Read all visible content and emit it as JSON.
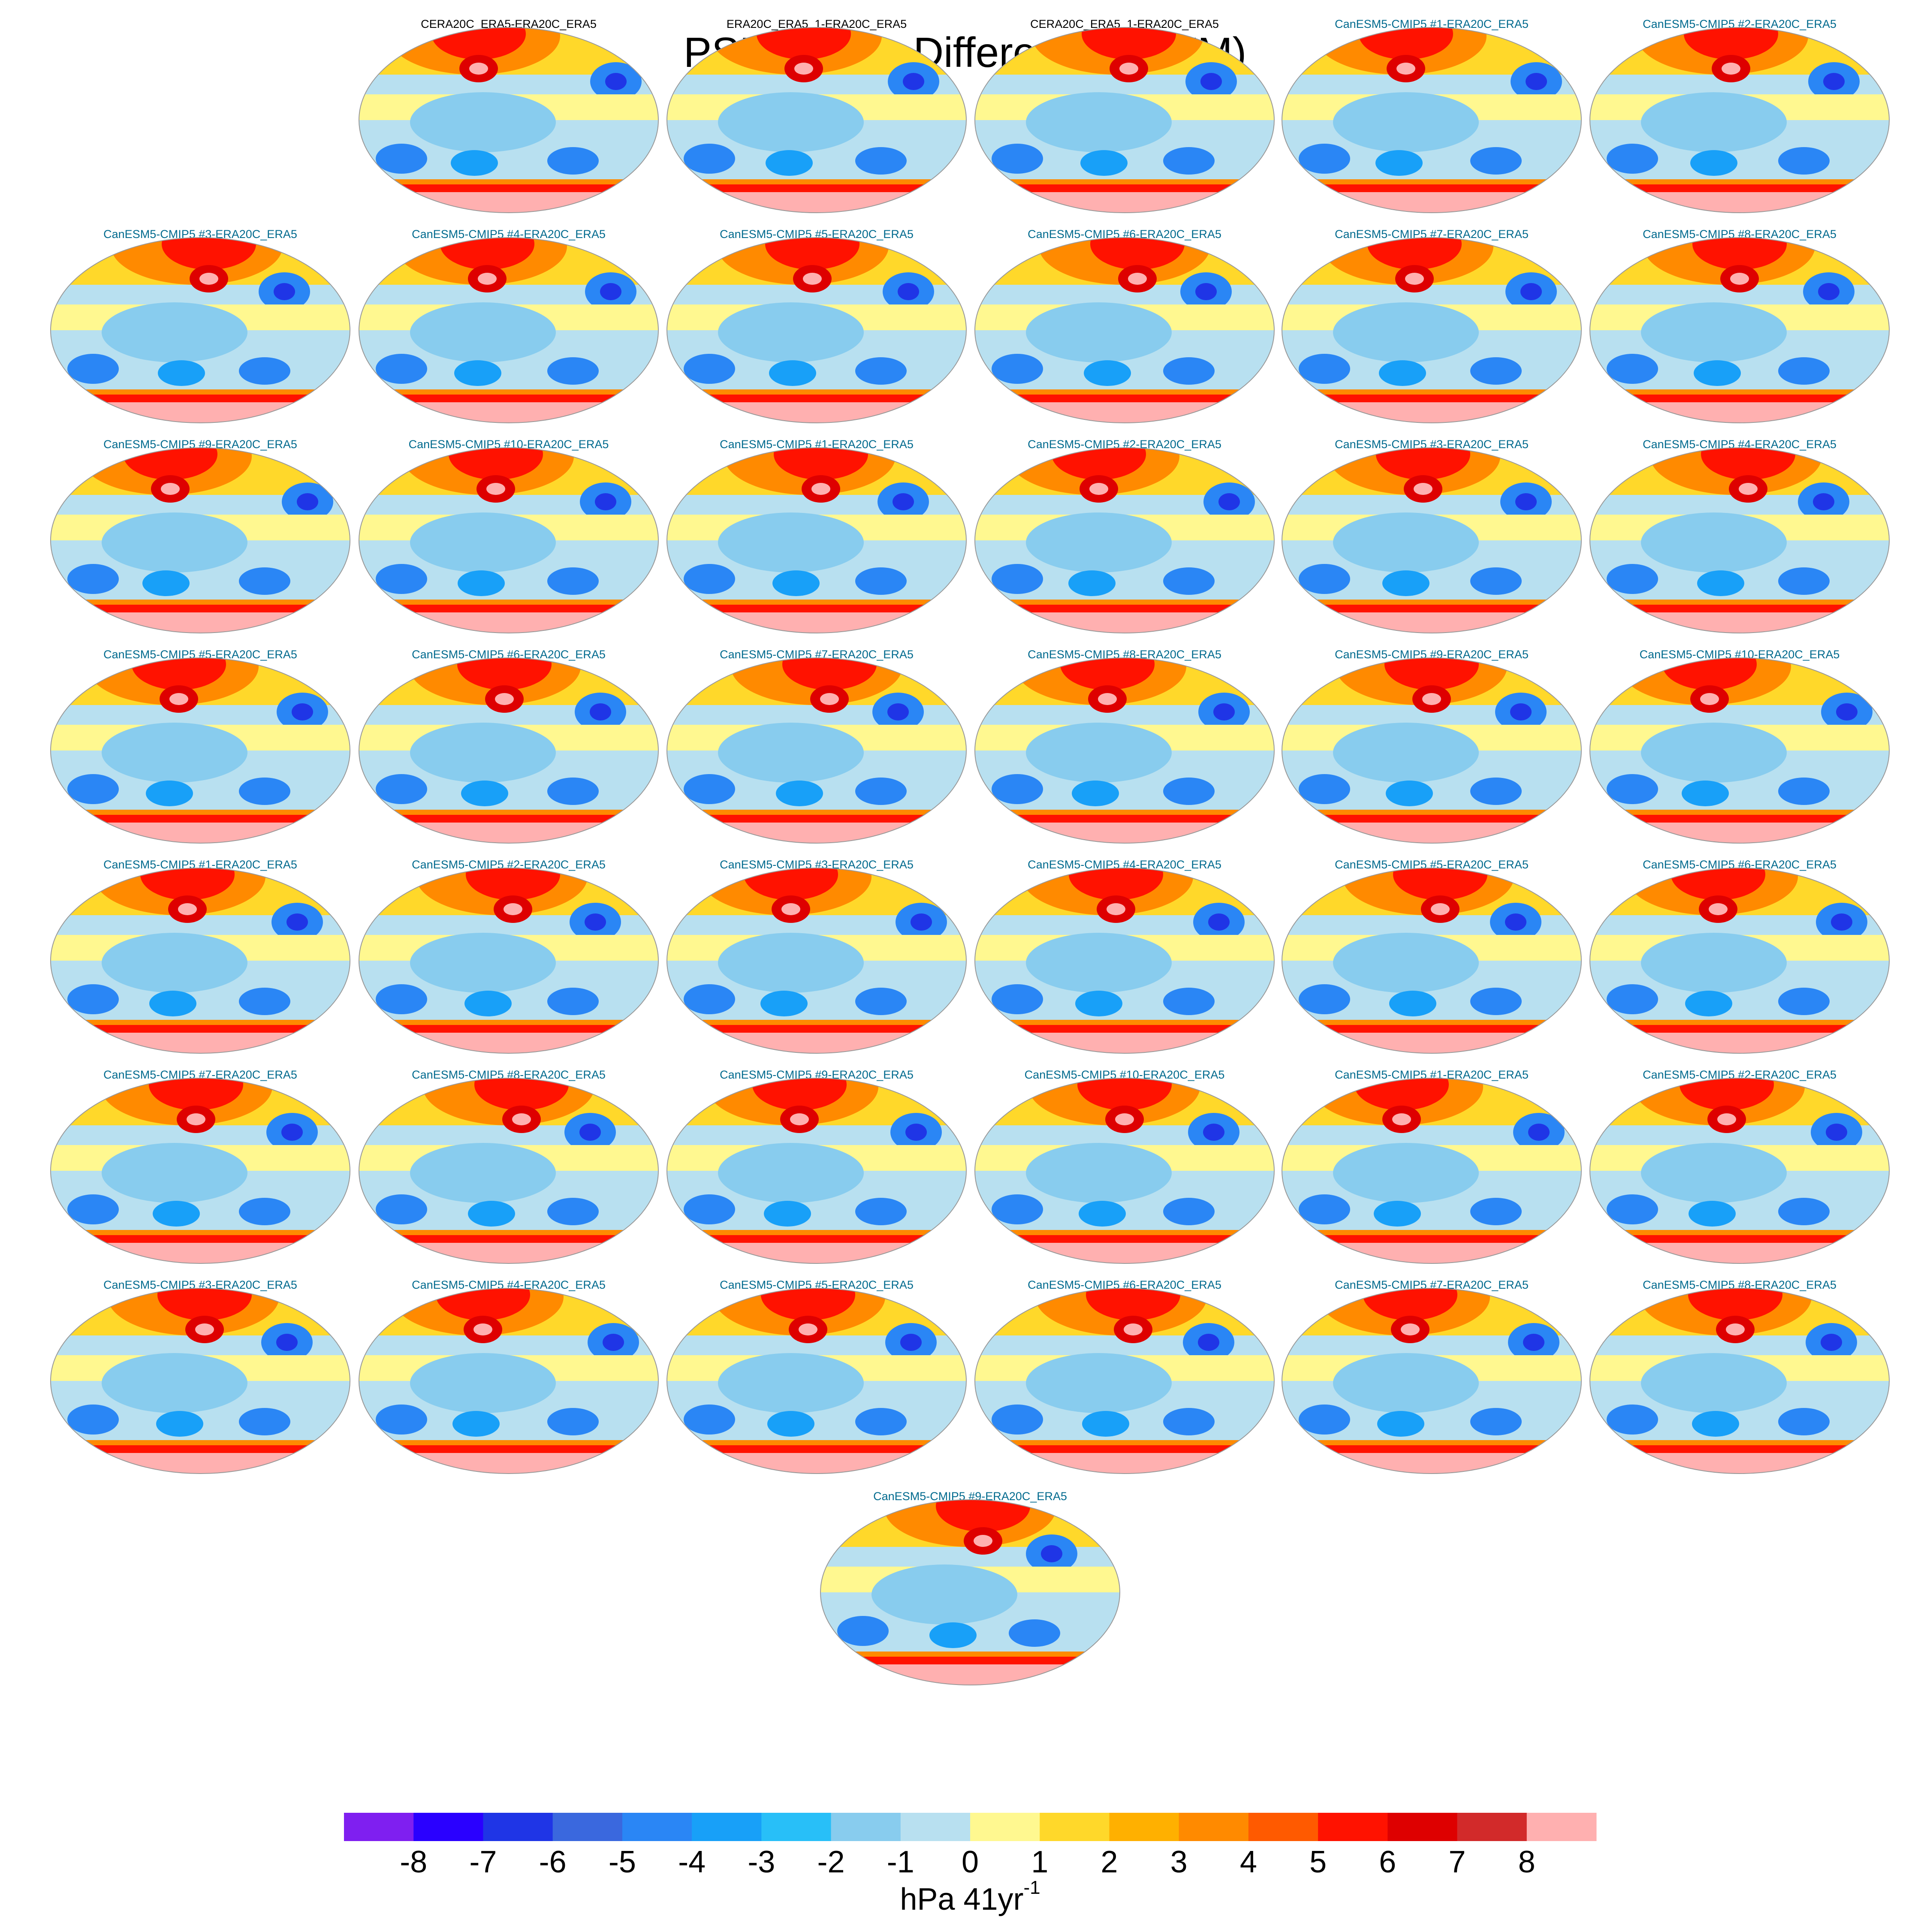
{
  "title": "PSL Trends Differences (JFM)",
  "panels": [
    {
      "title": "CERA20C_ERA5-ERA20C_ERA5",
      "color": "#000000"
    },
    {
      "title": "ERA20C_ERA5_1-ERA20C_ERA5",
      "color": "#000000"
    },
    {
      "title": "CERA20C_ERA5_1-ERA20C_ERA5",
      "color": "#000000"
    },
    {
      "title": "CanESM5-CMIP5 #1-ERA20C_ERA5",
      "color": "#006a8e"
    },
    {
      "title": "CanESM5-CMIP5 #2-ERA20C_ERA5",
      "color": "#006a8e"
    },
    {
      "title": "CanESM5-CMIP5 #3-ERA20C_ERA5",
      "color": "#006a8e"
    },
    {
      "title": "CanESM5-CMIP5 #4-ERA20C_ERA5",
      "color": "#006a8e"
    },
    {
      "title": "CanESM5-CMIP5 #5-ERA20C_ERA5",
      "color": "#006a8e"
    },
    {
      "title": "CanESM5-CMIP5 #6-ERA20C_ERA5",
      "color": "#006a8e"
    },
    {
      "title": "CanESM5-CMIP5 #7-ERA20C_ERA5",
      "color": "#006a8e"
    },
    {
      "title": "CanESM5-CMIP5 #8-ERA20C_ERA5",
      "color": "#006a8e"
    },
    {
      "title": "CanESM5-CMIP5 #9-ERA20C_ERA5",
      "color": "#006a8e"
    },
    {
      "title": "CanESM5-CMIP5 #10-ERA20C_ERA5",
      "color": "#006a8e"
    },
    {
      "title": "CanESM5-CMIP5 #1-ERA20C_ERA5",
      "color": "#006a8e"
    },
    {
      "title": "CanESM5-CMIP5 #2-ERA20C_ERA5",
      "color": "#006a8e"
    },
    {
      "title": "CanESM5-CMIP5 #3-ERA20C_ERA5",
      "color": "#006a8e"
    },
    {
      "title": "CanESM5-CMIP5 #4-ERA20C_ERA5",
      "color": "#006a8e"
    },
    {
      "title": "CanESM5-CMIP5 #5-ERA20C_ERA5",
      "color": "#006a8e"
    },
    {
      "title": "CanESM5-CMIP5 #6-ERA20C_ERA5",
      "color": "#006a8e"
    },
    {
      "title": "CanESM5-CMIP5 #7-ERA20C_ERA5",
      "color": "#006a8e"
    },
    {
      "title": "CanESM5-CMIP5 #8-ERA20C_ERA5",
      "color": "#006a8e"
    },
    {
      "title": "CanESM5-CMIP5 #9-ERA20C_ERA5",
      "color": "#006a8e"
    },
    {
      "title": "CanESM5-CMIP5 #10-ERA20C_ERA5",
      "color": "#006a8e"
    },
    {
      "title": "CanESM5-CMIP5 #1-ERA20C_ERA5",
      "color": "#006a8e"
    },
    {
      "title": "CanESM5-CMIP5 #2-ERA20C_ERA5",
      "color": "#006a8e"
    },
    {
      "title": "CanESM5-CMIP5 #3-ERA20C_ERA5",
      "color": "#006a8e"
    },
    {
      "title": "CanESM5-CMIP5 #4-ERA20C_ERA5",
      "color": "#006a8e"
    },
    {
      "title": "CanESM5-CMIP5 #5-ERA20C_ERA5",
      "color": "#006a8e"
    },
    {
      "title": "CanESM5-CMIP5 #6-ERA20C_ERA5",
      "color": "#006a8e"
    },
    {
      "title": "CanESM5-CMIP5 #7-ERA20C_ERA5",
      "color": "#006a8e"
    },
    {
      "title": "CanESM5-CMIP5 #8-ERA20C_ERA5",
      "color": "#006a8e"
    },
    {
      "title": "CanESM5-CMIP5 #9-ERA20C_ERA5",
      "color": "#006a8e"
    },
    {
      "title": "CanESM5-CMIP5 #10-ERA20C_ERA5",
      "color": "#006a8e"
    },
    {
      "title": "CanESM5-CMIP5 #1-ERA20C_ERA5",
      "color": "#006a8e"
    },
    {
      "title": "CanESM5-CMIP5 #2-ERA20C_ERA5",
      "color": "#006a8e"
    },
    {
      "title": "CanESM5-CMIP5 #3-ERA20C_ERA5",
      "color": "#006a8e"
    },
    {
      "title": "CanESM5-CMIP5 #4-ERA20C_ERA5",
      "color": "#006a8e"
    },
    {
      "title": "CanESM5-CMIP5 #5-ERA20C_ERA5",
      "color": "#006a8e"
    },
    {
      "title": "CanESM5-CMIP5 #6-ERA20C_ERA5",
      "color": "#006a8e"
    },
    {
      "title": "CanESM5-CMIP5 #7-ERA20C_ERA5",
      "color": "#006a8e"
    },
    {
      "title": "CanESM5-CMIP5 #8-ERA20C_ERA5",
      "color": "#006a8e"
    },
    {
      "title": "CanESM5-CMIP5 #9-ERA20C_ERA5",
      "color": "#006a8e"
    }
  ],
  "colorbar": {
    "colors": [
      "#7f1ff0",
      "#2a00ff",
      "#1f35e6",
      "#3a68de",
      "#2a86f5",
      "#18a0f8",
      "#28bff8",
      "#88ccee",
      "#b8e0f0",
      "#fff890",
      "#ffd82a",
      "#ffb000",
      "#ff8a00",
      "#ff5a00",
      "#ff1200",
      "#de0000",
      "#d22a2a",
      "#ffb0b0"
    ],
    "ticks": [
      -8,
      -7,
      -6,
      -5,
      -4,
      -3,
      -2,
      -1,
      0,
      1,
      2,
      3,
      4,
      5,
      6,
      7,
      8
    ],
    "units": "hPa 41yr",
    "units_exponent": "-1"
  }
}
